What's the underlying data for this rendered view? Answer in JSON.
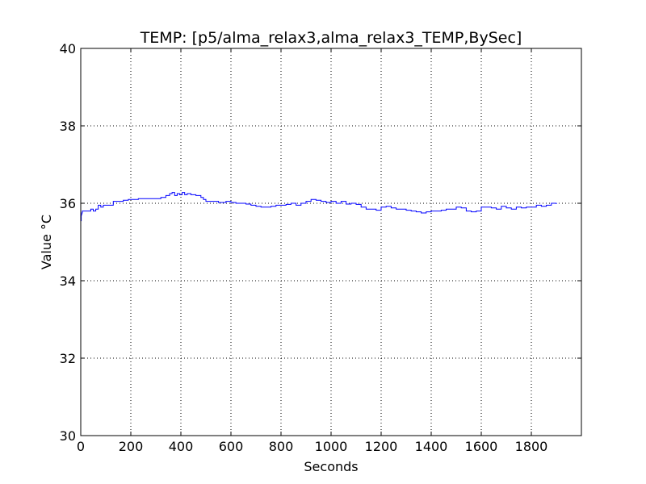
{
  "chart_data": {
    "type": "line",
    "title": "TEMP: [p5/alma_relax3,alma_relax3_TEMP,BySec]",
    "xlabel": "Seconds",
    "ylabel": "Value °C",
    "xlim": [
      0,
      2000
    ],
    "ylim": [
      30,
      40
    ],
    "x_ticks": [
      0,
      200,
      400,
      600,
      800,
      1000,
      1200,
      1400,
      1600,
      1800
    ],
    "y_ticks": [
      30,
      32,
      34,
      36,
      38,
      40
    ],
    "grid": true,
    "line_color": "#0000ff",
    "series": [
      {
        "x": [
          0,
          2,
          4,
          6,
          10,
          20,
          40,
          50,
          60,
          70,
          80,
          90,
          110,
          120,
          130,
          140,
          150,
          170,
          190,
          200,
          230,
          260,
          300,
          320,
          340,
          355,
          365,
          375,
          385,
          395,
          405,
          415,
          425,
          440,
          460,
          470,
          480,
          490,
          500,
          520,
          550,
          580,
          600,
          620,
          640,
          660,
          680,
          700,
          720,
          740,
          760,
          780,
          800,
          820,
          840,
          860,
          880,
          900,
          920,
          940,
          960,
          980,
          1000,
          1020,
          1040,
          1060,
          1080,
          1100,
          1120,
          1140,
          1160,
          1180,
          1200,
          1220,
          1240,
          1260,
          1280,
          1300,
          1320,
          1340,
          1360,
          1380,
          1400,
          1420,
          1440,
          1460,
          1480,
          1500,
          1520,
          1540,
          1560,
          1580,
          1600,
          1620,
          1640,
          1660,
          1680,
          1700,
          1720,
          1740,
          1760,
          1780,
          1800,
          1820,
          1840,
          1860,
          1880,
          1900
        ],
        "values": [
          35.55,
          35.7,
          35.75,
          35.8,
          35.8,
          35.8,
          35.85,
          35.8,
          35.85,
          35.95,
          35.9,
          35.95,
          35.95,
          35.95,
          36.05,
          36.05,
          36.05,
          36.08,
          36.1,
          36.1,
          36.12,
          36.12,
          36.12,
          36.15,
          36.2,
          36.25,
          36.28,
          36.2,
          36.25,
          36.22,
          36.28,
          36.22,
          36.25,
          36.22,
          36.2,
          36.2,
          36.15,
          36.1,
          36.05,
          36.05,
          36.02,
          36.05,
          36.02,
          36.0,
          36.0,
          35.98,
          35.95,
          35.92,
          35.9,
          35.9,
          35.92,
          35.95,
          35.95,
          35.97,
          36.0,
          35.95,
          36.0,
          36.05,
          36.1,
          36.08,
          36.05,
          36.02,
          36.05,
          36.0,
          36.05,
          35.98,
          36.0,
          35.97,
          35.9,
          35.85,
          35.85,
          35.82,
          35.9,
          35.92,
          35.88,
          35.85,
          35.85,
          35.82,
          35.8,
          35.78,
          35.75,
          35.78,
          35.8,
          35.8,
          35.82,
          35.85,
          35.85,
          35.9,
          35.88,
          35.8,
          35.78,
          35.8,
          35.9,
          35.9,
          35.88,
          35.85,
          35.92,
          35.88,
          35.85,
          35.9,
          35.88,
          35.9,
          35.9,
          35.95,
          35.92,
          35.95,
          36.0,
          35.98
        ]
      }
    ]
  }
}
